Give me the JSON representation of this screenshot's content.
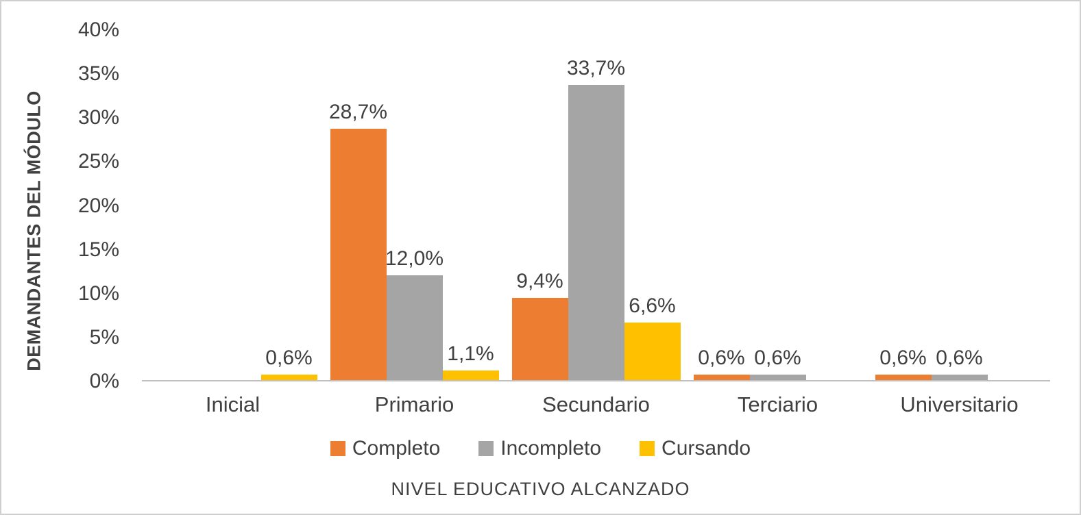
{
  "chart_data": {
    "type": "bar",
    "title": "",
    "categories": [
      "Inicial",
      "Primario",
      "Secundario",
      "Terciario",
      "Universitario"
    ],
    "series": [
      {
        "name": "Completo",
        "color": "#ED7D31",
        "values": [
          0,
          28.7,
          9.4,
          0.6,
          0.6
        ],
        "labels": [
          "",
          "28,7%",
          "9,4%",
          "0,6%",
          "0,6%"
        ]
      },
      {
        "name": "Incompleto",
        "color": "#A5A5A5",
        "values": [
          0,
          12.0,
          33.7,
          0.6,
          0.6
        ],
        "labels": [
          "",
          "12,0%",
          "33,7%",
          "0,6%",
          "0,6%"
        ]
      },
      {
        "name": "Cursando",
        "color": "#FFC000",
        "values": [
          0.6,
          1.1,
          6.6,
          0,
          0
        ],
        "labels": [
          "0,6%",
          "1,1%",
          "6,6%",
          "",
          ""
        ]
      }
    ],
    "ylabel": "DEMANDANTES DEL MÓDULO",
    "xlabel": "NIVEL EDUCATIVO ALCANZADO",
    "ylim": [
      0,
      40
    ],
    "yticks": [
      "40%",
      "35%",
      "30%",
      "25%",
      "20%",
      "15%",
      "10%",
      "5%",
      "0%"
    ],
    "ytick_values": [
      40,
      35,
      30,
      25,
      20,
      15,
      10,
      5,
      0
    ],
    "grid": false,
    "legend_position": "bottom"
  }
}
